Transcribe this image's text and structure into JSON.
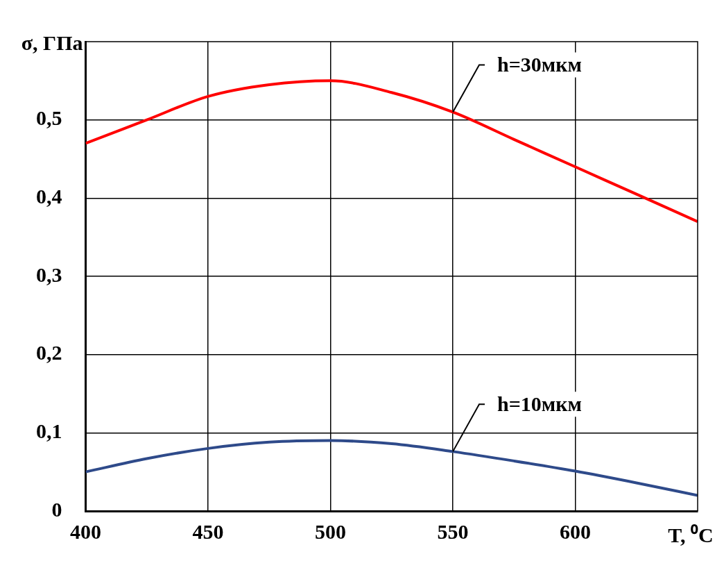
{
  "chart_data": {
    "type": "line",
    "xlabel": "T, ⁰C",
    "ylabel": "σ, ГПа",
    "x": [
      400,
      425,
      450,
      475,
      500,
      525,
      550,
      575,
      600,
      625,
      650
    ],
    "series": [
      {
        "name": "h=30мкм",
        "color": "#ff0000",
        "values": [
          0.47,
          0.5,
          0.53,
          0.545,
          0.55,
          0.535,
          0.51,
          0.475,
          0.44,
          0.405,
          0.37
        ]
      },
      {
        "name": "h=10мкм",
        "color": "#2e4a8a",
        "values": [
          0.05,
          0.067,
          0.08,
          0.088,
          0.09,
          0.086,
          0.076,
          0.064,
          0.051,
          0.036,
          0.02
        ]
      }
    ],
    "xlim": [
      400,
      650
    ],
    "xticks": [
      400,
      450,
      500,
      550,
      600
    ],
    "ylim": [
      0,
      0.6
    ],
    "yticks": [
      0,
      {
        "value": 0.1,
        "label": "0,1"
      },
      {
        "value": 0.2,
        "label": "0,2"
      },
      {
        "value": 0.3,
        "label": "0,3"
      },
      {
        "value": 0.4,
        "label": "0,4"
      },
      {
        "value": 0.5,
        "label": "0,5"
      }
    ],
    "grid": true,
    "legend": false,
    "marker": "none",
    "line_style": "solid"
  }
}
